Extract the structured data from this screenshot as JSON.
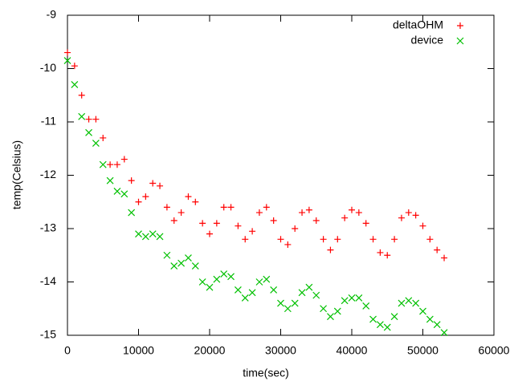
{
  "chart_data": {
    "type": "scatter",
    "xlabel": "time(sec)",
    "ylabel": "temp(Celsius)",
    "x": [
      0,
      1000,
      2000,
      3000,
      4000,
      5000,
      6000,
      7000,
      8000,
      9000,
      10000,
      11000,
      12000,
      13000,
      14000,
      15000,
      16000,
      17000,
      18000,
      19000,
      20000,
      21000,
      22000,
      23000,
      24000,
      25000,
      26000,
      27000,
      28000,
      29000,
      30000,
      31000,
      32000,
      33000,
      34000,
      35000,
      36000,
      37000,
      38000,
      39000,
      40000,
      41000,
      42000,
      43000,
      44000,
      45000,
      46000,
      47000,
      48000,
      49000,
      50000,
      51000,
      52000,
      53000
    ],
    "series": [
      {
        "name": "deltaOHM",
        "color": "#ff0000",
        "marker": "+",
        "values": [
          -9.7,
          -9.95,
          -10.5,
          -10.95,
          -10.95,
          -11.3,
          -11.8,
          -11.8,
          -11.7,
          -12.1,
          -12.5,
          -12.4,
          -12.15,
          -12.2,
          -12.6,
          -12.85,
          -12.7,
          -12.4,
          -12.5,
          -12.9,
          -13.1,
          -12.9,
          -12.6,
          -12.6,
          -12.95,
          -13.2,
          -13.05,
          -12.7,
          -12.6,
          -12.85,
          -13.2,
          -13.3,
          -13.0,
          -12.7,
          -12.65,
          -12.85,
          -13.2,
          -13.4,
          -13.2,
          -12.8,
          -12.65,
          -12.7,
          -12.9,
          -13.2,
          -13.45,
          -13.5,
          -13.2,
          -12.8,
          -12.7,
          -12.75,
          -12.95,
          -13.2,
          -13.4,
          -13.55
        ]
      },
      {
        "name": "device",
        "color": "#00c000",
        "marker": "x",
        "values": [
          -9.85,
          -10.3,
          -10.9,
          -11.2,
          -11.4,
          -11.8,
          -12.1,
          -12.3,
          -12.35,
          -12.7,
          -13.1,
          -13.15,
          -13.1,
          -13.15,
          -13.5,
          -13.7,
          -13.65,
          -13.55,
          -13.7,
          -14.0,
          -14.1,
          -13.95,
          -13.85,
          -13.9,
          -14.15,
          -14.3,
          -14.2,
          -14.0,
          -13.95,
          -14.15,
          -14.4,
          -14.5,
          -14.4,
          -14.2,
          -14.1,
          -14.25,
          -14.5,
          -14.65,
          -14.55,
          -14.35,
          -14.3,
          -14.3,
          -14.45,
          -14.7,
          -14.8,
          -14.85,
          -14.65,
          -14.4,
          -14.35,
          -14.4,
          -14.55,
          -14.7,
          -14.8,
          -14.95
        ]
      }
    ],
    "xlim": [
      0,
      60000
    ],
    "xticks": [
      0,
      10000,
      20000,
      30000,
      40000,
      50000,
      60000
    ],
    "ylim": [
      -15,
      -9
    ],
    "yticks": [
      -15,
      -14,
      -13,
      -12,
      -11,
      -10,
      -9
    ],
    "legend": "upper right",
    "grid": false
  }
}
